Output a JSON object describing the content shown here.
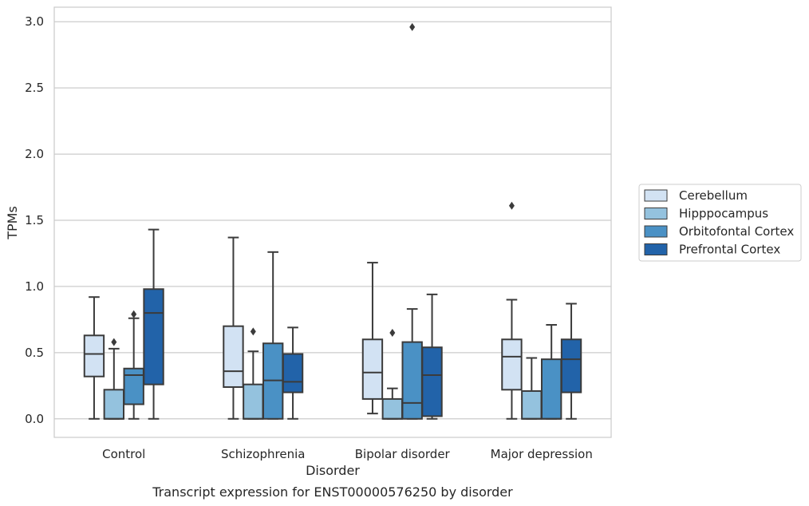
{
  "caption": "Transcript expression for ENST00000576250 by disorder",
  "colors": {
    "Cerebellum": "#d2e2f3",
    "Hipppocampus": "#94c2de",
    "Orbitofontal Cortex": "#4a91c5",
    "Prefrontal Cortex": "#2263a9",
    "line": "#3b3b3b",
    "grid": "#cccccc",
    "frame": "#cccccc"
  },
  "chart_data": {
    "type": "box",
    "title": "",
    "xlabel": "Disorder",
    "ylabel": "TPMs",
    "ylim": [
      -0.14,
      3.11
    ],
    "yticks": [
      0.0,
      0.5,
      1.0,
      1.5,
      2.0,
      2.5,
      3.0
    ],
    "ytick_labels": [
      "0.0",
      "0.5",
      "1.0",
      "1.5",
      "2.0",
      "2.5",
      "3.0"
    ],
    "grid": "horizontal",
    "legend_position": "right",
    "categories": [
      "Control",
      "Schizophrenia",
      "Bipolar disorder",
      "Major depression"
    ],
    "series": [
      {
        "name": "Cerebellum",
        "boxes": [
          {
            "whisker_low": 0.0,
            "q1": 0.32,
            "median": 0.49,
            "q3": 0.63,
            "whisker_high": 0.92,
            "outliers": []
          },
          {
            "whisker_low": 0.0,
            "q1": 0.24,
            "median": 0.36,
            "q3": 0.7,
            "whisker_high": 1.37,
            "outliers": []
          },
          {
            "whisker_low": 0.04,
            "q1": 0.15,
            "median": 0.35,
            "q3": 0.6,
            "whisker_high": 1.18,
            "outliers": []
          },
          {
            "whisker_low": 0.0,
            "q1": 0.22,
            "median": 0.47,
            "q3": 0.6,
            "whisker_high": 0.9,
            "outliers": [
              1.61
            ]
          }
        ]
      },
      {
        "name": "Hipppocampus",
        "boxes": [
          {
            "whisker_low": 0.0,
            "q1": 0.0,
            "median": 0.0,
            "q3": 0.22,
            "whisker_high": 0.53,
            "outliers": [
              0.58
            ]
          },
          {
            "whisker_low": 0.0,
            "q1": 0.0,
            "median": 0.0,
            "q3": 0.26,
            "whisker_high": 0.51,
            "outliers": [
              0.66
            ]
          },
          {
            "whisker_low": 0.0,
            "q1": 0.0,
            "median": 0.0,
            "q3": 0.15,
            "whisker_high": 0.23,
            "outliers": [
              0.65
            ]
          },
          {
            "whisker_low": 0.0,
            "q1": 0.0,
            "median": 0.0,
            "q3": 0.21,
            "whisker_high": 0.46,
            "outliers": []
          }
        ]
      },
      {
        "name": "Orbitofontal Cortex",
        "boxes": [
          {
            "whisker_low": 0.0,
            "q1": 0.11,
            "median": 0.33,
            "q3": 0.38,
            "whisker_high": 0.76,
            "outliers": [
              0.79
            ]
          },
          {
            "whisker_low": 0.0,
            "q1": 0.0,
            "median": 0.29,
            "q3": 0.57,
            "whisker_high": 1.26,
            "outliers": []
          },
          {
            "whisker_low": 0.0,
            "q1": 0.0,
            "median": 0.12,
            "q3": 0.58,
            "whisker_high": 0.83,
            "outliers": [
              2.96
            ]
          },
          {
            "whisker_low": 0.0,
            "q1": 0.0,
            "median": 0.0,
            "q3": 0.45,
            "whisker_high": 0.71,
            "outliers": []
          }
        ]
      },
      {
        "name": "Prefrontal Cortex",
        "boxes": [
          {
            "whisker_low": 0.0,
            "q1": 0.26,
            "median": 0.8,
            "q3": 0.98,
            "whisker_high": 1.43,
            "outliers": []
          },
          {
            "whisker_low": 0.0,
            "q1": 0.2,
            "median": 0.28,
            "q3": 0.49,
            "whisker_high": 0.69,
            "outliers": []
          },
          {
            "whisker_low": 0.0,
            "q1": 0.02,
            "median": 0.33,
            "q3": 0.54,
            "whisker_high": 0.94,
            "outliers": []
          },
          {
            "whisker_low": 0.0,
            "q1": 0.2,
            "median": 0.45,
            "q3": 0.6,
            "whisker_high": 0.87,
            "outliers": []
          }
        ]
      }
    ]
  }
}
